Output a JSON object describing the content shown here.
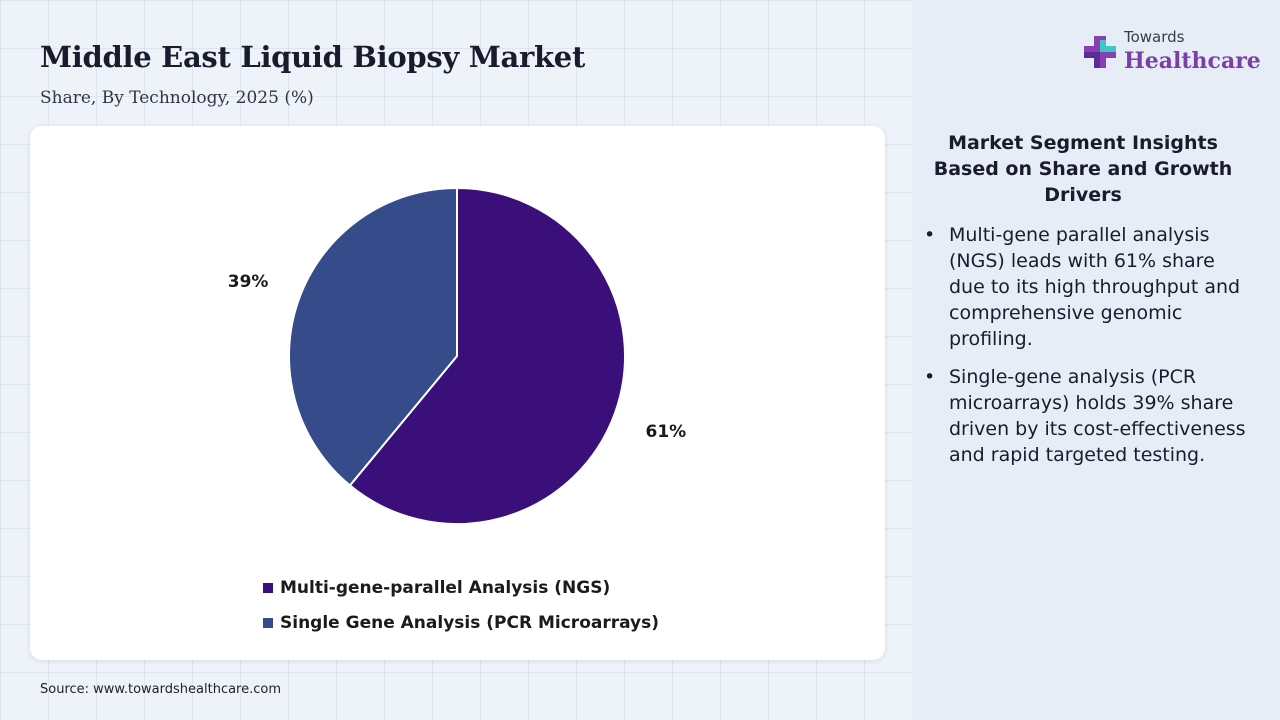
{
  "header": {
    "title": "Middle East Liquid Biopsy Market",
    "subtitle": "Share, By Technology, 2025 (%)"
  },
  "chart_data": {
    "type": "pie",
    "categories": [
      "Multi-gene-parallel Analysis (NGS)",
      "Single Gene Analysis (PCR Microarrays)"
    ],
    "values": [
      61,
      39
    ],
    "labels": [
      "61%",
      "39%"
    ],
    "colors": [
      "#3b0f7a",
      "#354b8a"
    ],
    "legend_position": "bottom",
    "start_angle": "12 o'clock",
    "direction": "clockwise"
  },
  "source": "Source: www.towardshealthcare.com",
  "logo": {
    "top_text": "Towards",
    "main_text": "Healthcare"
  },
  "insights": {
    "heading": "Market Segment Insights Based on Share and Growth Drivers",
    "items": [
      "Multi-gene parallel analysis (NGS) leads with 61% share due to its high throughput and comprehensive genomic profiling.",
      "Single-gene analysis (PCR microarrays) holds 39% share driven by its cost-effectiveness and rapid targeted testing."
    ]
  },
  "bullet_char": "•"
}
